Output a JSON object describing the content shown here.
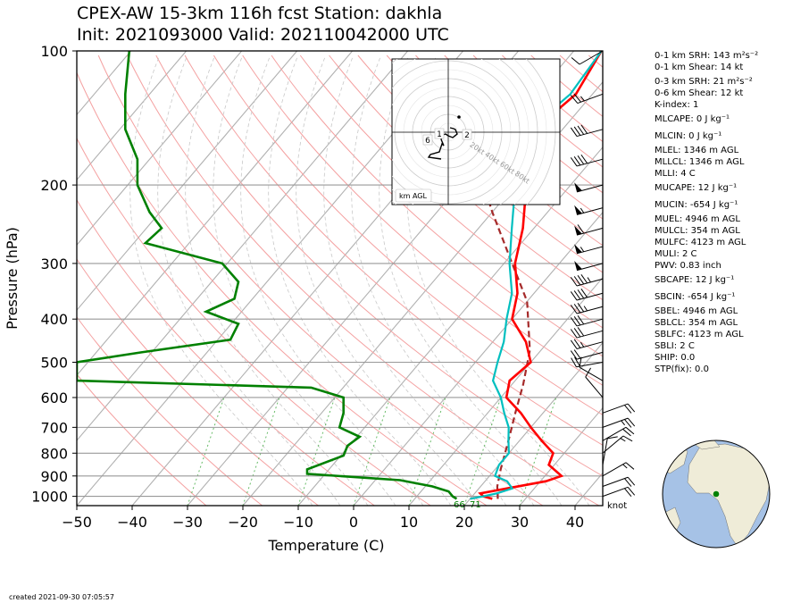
{
  "header": {
    "title_line1": "CPEX-AW 15-3km  116h fcst  Station: dakhla",
    "title_line2": "Init: 2021093000  Valid: 202110042000 UTC"
  },
  "footer": {
    "created": "created 2021-09-30 07:05:57"
  },
  "stats": [
    "0-1 km SRH: 143 m²s⁻²",
    "0-1 km Shear: 14 kt",
    "0-3 km SRH: 21 m²s⁻²",
    "0-6 km Shear: 12 kt",
    "K-index: 1",
    "MLCAPE: 0 J kg⁻¹",
    "MLCIN: 0 J kg⁻¹",
    "MLEL: 1346 m AGL",
    "MLLCL: 1346 m AGL",
    "MLLI: 4 C",
    "MUCAPE: 12 J kg⁻¹",
    "MUCIN: -654 J kg⁻¹",
    "MUEL: 4946 m AGL",
    "MULCL: 354 m AGL",
    "MULFC: 4123 m AGL",
    "MULI: 2 C",
    "PWV: 0.83 inch",
    "SBCAPE: 12 J kg⁻¹",
    "SBCIN: -654 J kg⁻¹",
    "SBEL: 4946 m AGL",
    "SBLCL: 354 m AGL",
    "SBLFC: 4123 m AGL",
    "SBLI: 2 C",
    "SHIP: 0.0",
    "STP(fix): 0.0"
  ],
  "hodograph": {
    "label": "km AGL",
    "ring_labels": [
      "20kt",
      "40kt",
      "60kt",
      "80kt"
    ],
    "height_marks": [
      "1",
      "2",
      "6"
    ]
  },
  "colors": {
    "temperature": "#ff0000",
    "dewpoint": "#00bfbf",
    "rh": "#008000",
    "parcel": "#a52a2a",
    "isotherm": "#b0b0b0",
    "dry_adiabat": "#f4a0a0",
    "mixing_ratio": "#66bb66",
    "ocean": "#a6c2e6",
    "land": "#efecd8"
  },
  "chart_data": {
    "type": "skew-t",
    "xlabel": "Temperature (C)",
    "ylabel": "Pressure (hPa)",
    "x_ticks": [
      "−50",
      "−40",
      "−30",
      "−20",
      "−10",
      "0",
      "10",
      "20",
      "30",
      "40"
    ],
    "x_values": [
      -50,
      -40,
      -30,
      -20,
      -10,
      0,
      10,
      20,
      30,
      40
    ],
    "xlim": [
      -50,
      45
    ],
    "p_ticks": [
      "100",
      "200",
      "300",
      "400",
      "500",
      "600",
      "700",
      "800",
      "900",
      "1000"
    ],
    "p_values": [
      100,
      200,
      300,
      400,
      500,
      600,
      700,
      800,
      900,
      1000
    ],
    "plim": [
      1050,
      100
    ],
    "barb_unit_label": "knot",
    "surface_labels": [
      "66",
      "71"
    ],
    "series": [
      {
        "key": "temperature",
        "points": [
          [
            -25,
            100
          ],
          [
            -23,
            125
          ],
          [
            -25,
            150
          ],
          [
            -22,
            175
          ],
          [
            -18,
            200
          ],
          [
            -12,
            250
          ],
          [
            -8,
            300
          ],
          [
            -3,
            350
          ],
          [
            0,
            400
          ],
          [
            6,
            450
          ],
          [
            10,
            500
          ],
          [
            9,
            550
          ],
          [
            11,
            600
          ],
          [
            16,
            650
          ],
          [
            20,
            700
          ],
          [
            24,
            750
          ],
          [
            28,
            800
          ],
          [
            29,
            850
          ],
          [
            33,
            900
          ],
          [
            31,
            925
          ],
          [
            25,
            960
          ],
          [
            21,
            985
          ],
          [
            22,
            1000
          ],
          [
            24,
            1013
          ]
        ]
      },
      {
        "key": "dewpoint",
        "points": [
          [
            -25,
            100
          ],
          [
            -24,
            125
          ],
          [
            -26,
            150
          ],
          [
            -24,
            175
          ],
          [
            -20,
            200
          ],
          [
            -14,
            250
          ],
          [
            -9,
            300
          ],
          [
            -4,
            350
          ],
          [
            -1,
            400
          ],
          [
            2,
            450
          ],
          [
            4,
            500
          ],
          [
            6,
            550
          ],
          [
            10,
            600
          ],
          [
            13,
            650
          ],
          [
            16,
            700
          ],
          [
            18,
            750
          ],
          [
            20,
            800
          ],
          [
            20,
            850
          ],
          [
            21,
            900
          ],
          [
            24,
            925
          ],
          [
            26,
            960
          ],
          [
            24,
            985
          ],
          [
            22,
            1000
          ],
          [
            20,
            1013
          ]
        ]
      }
    ],
    "rh_percent": [
      [
        13,
        100
      ],
      [
        12,
        125
      ],
      [
        12,
        150
      ],
      [
        15,
        175
      ],
      [
        15,
        200
      ],
      [
        18,
        230
      ],
      [
        21,
        250
      ],
      [
        17,
        270
      ],
      [
        36,
        300
      ],
      [
        40,
        330
      ],
      [
        39,
        360
      ],
      [
        32,
        385
      ],
      [
        40,
        410
      ],
      [
        38,
        445
      ],
      [
        16,
        475
      ],
      [
        0,
        500
      ],
      [
        0,
        550
      ],
      [
        58,
        570
      ],
      [
        66,
        600
      ],
      [
        66,
        650
      ],
      [
        65,
        700
      ],
      [
        70,
        735
      ],
      [
        67,
        770
      ],
      [
        66,
        810
      ],
      [
        57,
        870
      ],
      [
        57,
        890
      ],
      [
        80,
        920
      ],
      [
        88,
        950
      ],
      [
        92,
        975
      ],
      [
        93,
        1000
      ],
      [
        94,
        1013
      ]
    ],
    "rh_axis": {
      "pct_0_at_c": -50,
      "pct_100_at_c": 23
    },
    "parcel": [
      [
        -50,
        110
      ],
      [
        -40,
        140
      ],
      [
        -30,
        180
      ],
      [
        -20,
        230
      ],
      [
        -10,
        290
      ],
      [
        0,
        365
      ],
      [
        8,
        470
      ],
      [
        12,
        560
      ],
      [
        15,
        650
      ],
      [
        18,
        750
      ],
      [
        21,
        870
      ],
      [
        23,
        950
      ],
      [
        25,
        1013
      ]
    ],
    "hodograph_trace_kt": [
      [
        2,
        5
      ],
      [
        6,
        4
      ],
      [
        8,
        3
      ],
      [
        10,
        -2
      ],
      [
        5,
        -6
      ],
      [
        0,
        -4
      ],
      [
        -3,
        -2
      ],
      [
        -6,
        -3
      ],
      [
        -8,
        -8
      ],
      [
        -5,
        -15
      ],
      [
        -7,
        -13
      ],
      [
        -10,
        -22
      ],
      [
        -20,
        -25
      ],
      [
        -22,
        -28
      ],
      [
        -8,
        -30
      ]
    ],
    "wind_barbs": [
      {
        "p": 100,
        "spd": 10,
        "dir": 240
      },
      {
        "p": 125,
        "spd": 25,
        "dir": 250
      },
      {
        "p": 150,
        "spd": 40,
        "dir": 255
      },
      {
        "p": 175,
        "spd": 40,
        "dir": 255
      },
      {
        "p": 200,
        "spd": 50,
        "dir": 255
      },
      {
        "p": 225,
        "spd": 55,
        "dir": 255
      },
      {
        "p": 250,
        "spd": 60,
        "dir": 255
      },
      {
        "p": 275,
        "spd": 55,
        "dir": 255
      },
      {
        "p": 300,
        "spd": 50,
        "dir": 255
      },
      {
        "p": 325,
        "spd": 45,
        "dir": 255
      },
      {
        "p": 350,
        "spd": 40,
        "dir": 255
      },
      {
        "p": 375,
        "spd": 35,
        "dir": 255
      },
      {
        "p": 400,
        "spd": 30,
        "dir": 255
      },
      {
        "p": 425,
        "spd": 30,
        "dir": 255
      },
      {
        "p": 450,
        "spd": 25,
        "dir": 255
      },
      {
        "p": 475,
        "spd": 20,
        "dir": 255
      },
      {
        "p": 500,
        "spd": 20,
        "dir": 260
      },
      {
        "p": 550,
        "spd": 10,
        "dir": 300
      },
      {
        "p": 600,
        "spd": 10,
        "dir": 320
      },
      {
        "p": 650,
        "spd": 20,
        "dir": 70
      },
      {
        "p": 700,
        "spd": 25,
        "dir": 70
      },
      {
        "p": 750,
        "spd": 20,
        "dir": 60
      },
      {
        "p": 800,
        "spd": 15,
        "dir": 50
      },
      {
        "p": 850,
        "spd": 10,
        "dir": 10
      },
      {
        "p": 900,
        "spd": 15,
        "dir": 60
      },
      {
        "p": 950,
        "spd": 20,
        "dir": 70
      },
      {
        "p": 1000,
        "spd": 20,
        "dir": 70
      }
    ],
    "station_location": {
      "lon": -15.9,
      "lat": 23.7
    }
  }
}
